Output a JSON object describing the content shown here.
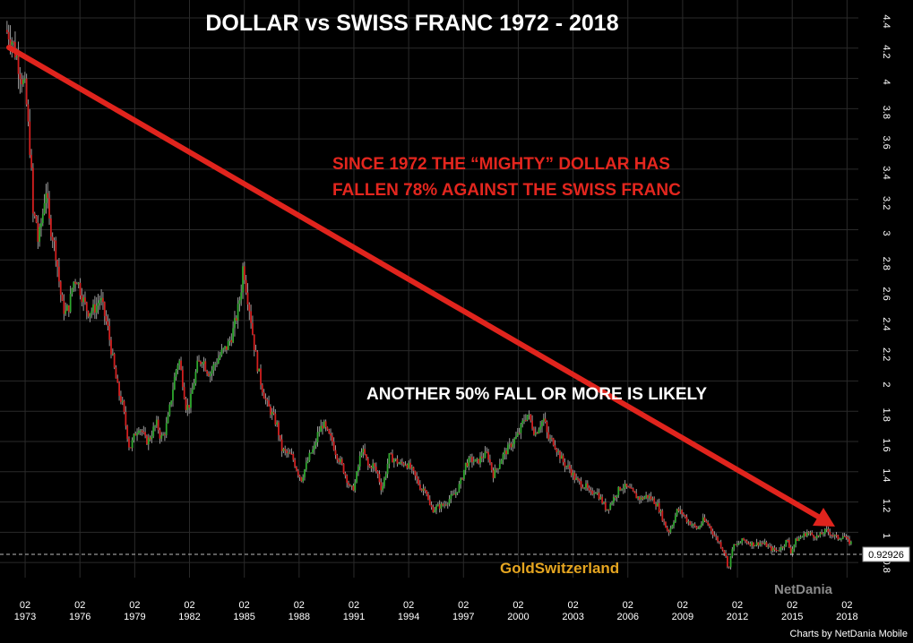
{
  "chart_data": {
    "type": "line",
    "title": "DOLLAR  vs  SWISS FRANC   1972 - 2018",
    "y_ticks": [
      "4.4",
      "4.2",
      "4",
      "3.8",
      "3.6",
      "3.4",
      "3.2",
      "3",
      "2.8",
      "2.6",
      "2.4",
      "2.2",
      "2",
      "1.8",
      "1.6",
      "1.4",
      "1.2",
      "1",
      "0.8"
    ],
    "x_ticks": [
      {
        "month": "02",
        "year": "1973",
        "t": 1973.08
      },
      {
        "month": "02",
        "year": "1976",
        "t": 1976.08
      },
      {
        "month": "02",
        "year": "1979",
        "t": 1979.08
      },
      {
        "month": "02",
        "year": "1982",
        "t": 1982.08
      },
      {
        "month": "02",
        "year": "1985",
        "t": 1985.08
      },
      {
        "month": "02",
        "year": "1988",
        "t": 1988.08
      },
      {
        "month": "02",
        "year": "1991",
        "t": 1991.08
      },
      {
        "month": "02",
        "year": "1994",
        "t": 1994.08
      },
      {
        "month": "02",
        "year": "1997",
        "t": 1997.08
      },
      {
        "month": "02",
        "year": "2000",
        "t": 2000.08
      },
      {
        "month": "02",
        "year": "2003",
        "t": 2003.08
      },
      {
        "month": "02",
        "year": "2006",
        "t": 2006.08
      },
      {
        "month": "02",
        "year": "2009",
        "t": 2009.08
      },
      {
        "month": "02",
        "year": "2012",
        "t": 2012.08
      },
      {
        "month": "02",
        "year": "2015",
        "t": 2015.08
      },
      {
        "month": "02",
        "year": "2018",
        "t": 2018.08
      }
    ],
    "xlim": [
      1971.9,
      2018.7
    ],
    "ylim": [
      0.7,
      4.4
    ],
    "grid": true,
    "up_color": "#2ea82e",
    "down_color": "#d11f1f",
    "wick_color": "#9a9a9a",
    "last_value": "0.92926",
    "series": [
      {
        "values": [
          [
            1972.0,
            4.32
          ],
          [
            1972.3,
            4.28
          ],
          [
            1972.6,
            4.15
          ],
          [
            1972.9,
            4.0
          ],
          [
            1973.1,
            3.92
          ],
          [
            1973.2,
            3.75
          ],
          [
            1973.4,
            3.45
          ],
          [
            1973.5,
            3.1
          ],
          [
            1973.7,
            3.05
          ],
          [
            1973.8,
            2.9
          ],
          [
            1973.9,
            3.0
          ],
          [
            1974.1,
            3.15
          ],
          [
            1974.2,
            3.3
          ],
          [
            1974.4,
            3.05
          ],
          [
            1974.6,
            2.95
          ],
          [
            1974.8,
            2.82
          ],
          [
            1974.9,
            2.7
          ],
          [
            1975.1,
            2.5
          ],
          [
            1975.3,
            2.45
          ],
          [
            1975.5,
            2.5
          ],
          [
            1975.7,
            2.65
          ],
          [
            1975.9,
            2.68
          ],
          [
            1976.1,
            2.6
          ],
          [
            1976.3,
            2.52
          ],
          [
            1976.5,
            2.46
          ],
          [
            1976.8,
            2.47
          ],
          [
            1977.0,
            2.5
          ],
          [
            1977.2,
            2.55
          ],
          [
            1977.4,
            2.45
          ],
          [
            1977.6,
            2.35
          ],
          [
            1977.8,
            2.2
          ],
          [
            1978.0,
            2.05
          ],
          [
            1978.2,
            1.92
          ],
          [
            1978.4,
            1.85
          ],
          [
            1978.6,
            1.7
          ],
          [
            1978.8,
            1.55
          ],
          [
            1978.9,
            1.58
          ],
          [
            1979.1,
            1.65
          ],
          [
            1979.3,
            1.7
          ],
          [
            1979.5,
            1.66
          ],
          [
            1979.7,
            1.6
          ],
          [
            1979.9,
            1.62
          ],
          [
            1980.1,
            1.68
          ],
          [
            1980.3,
            1.72
          ],
          [
            1980.5,
            1.62
          ],
          [
            1980.7,
            1.65
          ],
          [
            1980.9,
            1.75
          ],
          [
            1981.1,
            1.9
          ],
          [
            1981.3,
            2.05
          ],
          [
            1981.5,
            2.15
          ],
          [
            1981.7,
            2.0
          ],
          [
            1981.9,
            1.82
          ],
          [
            1982.1,
            1.85
          ],
          [
            1982.3,
            1.98
          ],
          [
            1982.5,
            2.1
          ],
          [
            1982.8,
            2.15
          ],
          [
            1983.0,
            2.08
          ],
          [
            1983.2,
            2.05
          ],
          [
            1983.5,
            2.12
          ],
          [
            1983.8,
            2.18
          ],
          [
            1984.1,
            2.22
          ],
          [
            1984.4,
            2.3
          ],
          [
            1984.7,
            2.45
          ],
          [
            1984.9,
            2.6
          ],
          [
            1985.0,
            2.75
          ],
          [
            1985.1,
            2.7
          ],
          [
            1985.2,
            2.6
          ],
          [
            1985.4,
            2.45
          ],
          [
            1985.6,
            2.25
          ],
          [
            1985.8,
            2.1
          ],
          [
            1986.0,
            1.98
          ],
          [
            1986.3,
            1.85
          ],
          [
            1986.6,
            1.78
          ],
          [
            1986.9,
            1.7
          ],
          [
            1987.1,
            1.55
          ],
          [
            1987.4,
            1.52
          ],
          [
            1987.7,
            1.5
          ],
          [
            1988.0,
            1.4
          ],
          [
            1988.2,
            1.35
          ],
          [
            1988.4,
            1.42
          ],
          [
            1988.7,
            1.52
          ],
          [
            1988.9,
            1.55
          ],
          [
            1989.1,
            1.65
          ],
          [
            1989.4,
            1.72
          ],
          [
            1989.6,
            1.66
          ],
          [
            1989.9,
            1.6
          ],
          [
            1990.1,
            1.52
          ],
          [
            1990.4,
            1.45
          ],
          [
            1990.7,
            1.35
          ],
          [
            1990.9,
            1.28
          ],
          [
            1991.1,
            1.3
          ],
          [
            1991.3,
            1.42
          ],
          [
            1991.5,
            1.55
          ],
          [
            1991.7,
            1.5
          ],
          [
            1991.9,
            1.42
          ],
          [
            1992.1,
            1.45
          ],
          [
            1992.4,
            1.38
          ],
          [
            1992.6,
            1.28
          ],
          [
            1992.8,
            1.38
          ],
          [
            1993.0,
            1.5
          ],
          [
            1993.3,
            1.48
          ],
          [
            1993.6,
            1.45
          ],
          [
            1993.9,
            1.46
          ],
          [
            1994.2,
            1.42
          ],
          [
            1994.5,
            1.35
          ],
          [
            1994.8,
            1.28
          ],
          [
            1995.0,
            1.3
          ],
          [
            1995.2,
            1.18
          ],
          [
            1995.4,
            1.15
          ],
          [
            1995.7,
            1.17
          ],
          [
            1996.0,
            1.18
          ],
          [
            1996.3,
            1.22
          ],
          [
            1996.6,
            1.25
          ],
          [
            1996.9,
            1.32
          ],
          [
            1997.2,
            1.45
          ],
          [
            1997.5,
            1.48
          ],
          [
            1997.8,
            1.46
          ],
          [
            1998.1,
            1.5
          ],
          [
            1998.4,
            1.52
          ],
          [
            1998.7,
            1.38
          ],
          [
            1998.9,
            1.42
          ],
          [
            1999.2,
            1.5
          ],
          [
            1999.5,
            1.55
          ],
          [
            1999.8,
            1.6
          ],
          [
            2000.1,
            1.65
          ],
          [
            2000.4,
            1.75
          ],
          [
            2000.6,
            1.78
          ],
          [
            2000.8,
            1.72
          ],
          [
            2001.0,
            1.65
          ],
          [
            2001.3,
            1.72
          ],
          [
            2001.5,
            1.75
          ],
          [
            2001.7,
            1.62
          ],
          [
            2002.0,
            1.6
          ],
          [
            2002.3,
            1.52
          ],
          [
            2002.6,
            1.45
          ],
          [
            2002.9,
            1.42
          ],
          [
            2003.2,
            1.35
          ],
          [
            2003.5,
            1.32
          ],
          [
            2003.8,
            1.3
          ],
          [
            2004.0,
            1.25
          ],
          [
            2004.3,
            1.28
          ],
          [
            2004.6,
            1.22
          ],
          [
            2004.9,
            1.15
          ],
          [
            2005.1,
            1.18
          ],
          [
            2005.4,
            1.25
          ],
          [
            2005.7,
            1.3
          ],
          [
            2005.9,
            1.3
          ],
          [
            2006.2,
            1.28
          ],
          [
            2006.5,
            1.24
          ],
          [
            2006.8,
            1.22
          ],
          [
            2007.1,
            1.24
          ],
          [
            2007.4,
            1.22
          ],
          [
            2007.7,
            1.18
          ],
          [
            2007.9,
            1.12
          ],
          [
            2008.1,
            1.05
          ],
          [
            2008.3,
            1.0
          ],
          [
            2008.5,
            1.05
          ],
          [
            2008.8,
            1.15
          ],
          [
            2009.1,
            1.12
          ],
          [
            2009.3,
            1.08
          ],
          [
            2009.6,
            1.05
          ],
          [
            2009.9,
            1.02
          ],
          [
            2010.2,
            1.08
          ],
          [
            2010.5,
            1.05
          ],
          [
            2010.8,
            0.98
          ],
          [
            2011.1,
            0.93
          ],
          [
            2011.4,
            0.86
          ],
          [
            2011.6,
            0.75
          ],
          [
            2011.8,
            0.9
          ],
          [
            2012.1,
            0.92
          ],
          [
            2012.4,
            0.95
          ],
          [
            2012.7,
            0.93
          ],
          [
            2013.0,
            0.92
          ],
          [
            2013.3,
            0.93
          ],
          [
            2013.6,
            0.92
          ],
          [
            2013.9,
            0.89
          ],
          [
            2014.2,
            0.88
          ],
          [
            2014.5,
            0.9
          ],
          [
            2014.8,
            0.95
          ],
          [
            2015.0,
            0.87
          ],
          [
            2015.3,
            0.95
          ],
          [
            2015.6,
            0.97
          ],
          [
            2015.9,
            1.0
          ],
          [
            2016.2,
            0.98
          ],
          [
            2016.5,
            0.97
          ],
          [
            2016.8,
            1.0
          ],
          [
            2017.0,
            1.01
          ],
          [
            2017.3,
            0.98
          ],
          [
            2017.6,
            0.96
          ],
          [
            2017.9,
            0.98
          ],
          [
            2018.1,
            0.94
          ],
          [
            2018.3,
            0.93
          ]
        ]
      }
    ]
  },
  "annotations": {
    "note1_line1": "SINCE 1972  THE “MIGHTY” DOLLAR HAS",
    "note1_line2": "FALLEN 78% AGAINST THE SWISS FRANC",
    "note2": "ANOTHER 50% FALL OR MORE IS LIKELY",
    "brand": "GoldSwitzerland",
    "watermark": "NetDania",
    "credit": "Charts by NetDania Mobile"
  },
  "colors": {
    "background": "#000000",
    "grid": "#2a2a2a",
    "trend_arrow": "#e0241d",
    "annotation_red": "#e3261e",
    "brand": "#e5a520",
    "text": "#ffffff"
  }
}
